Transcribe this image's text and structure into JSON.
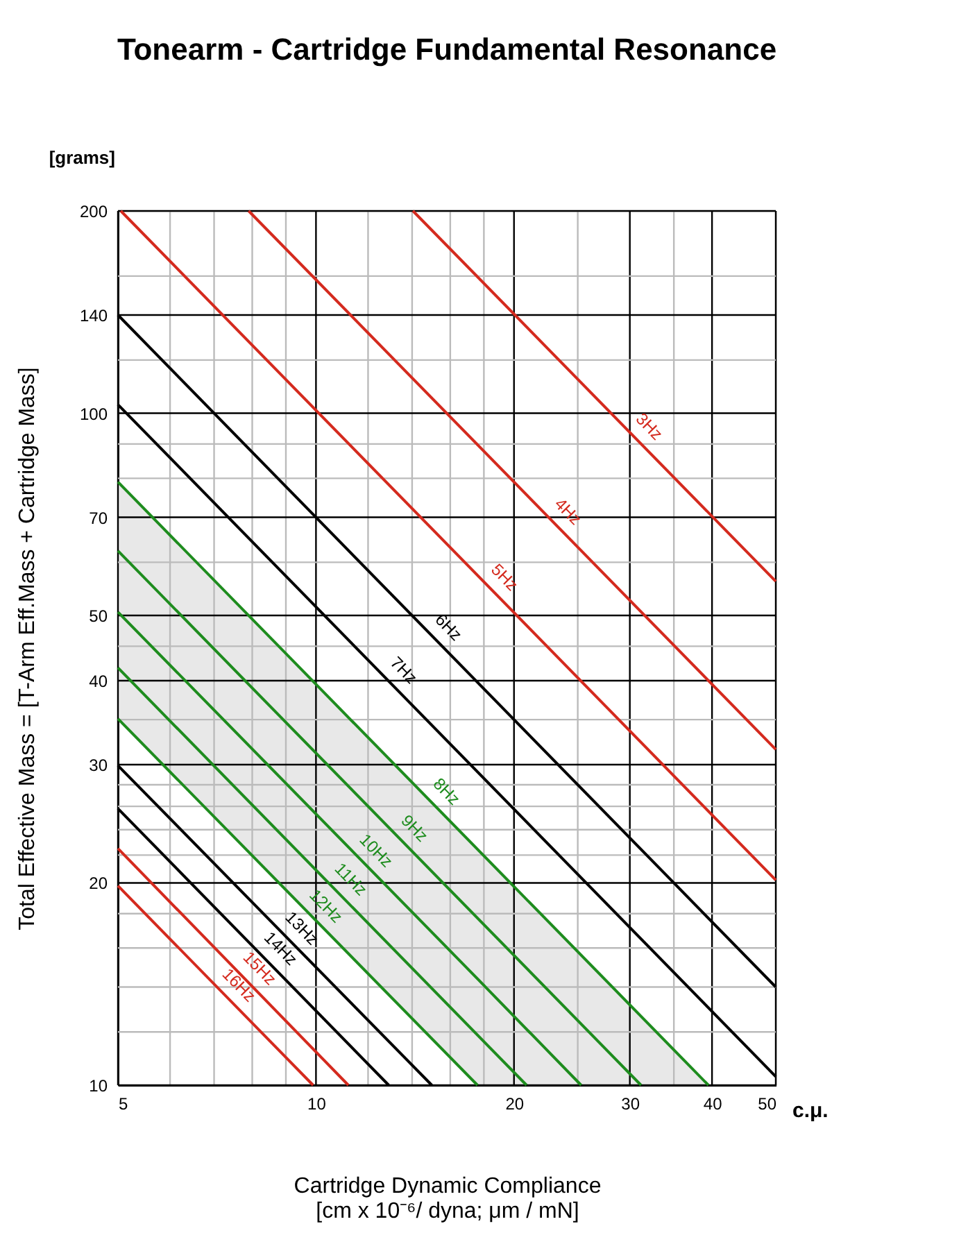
{
  "chart_data": {
    "type": "line",
    "title": "Tonearm - Cartridge Fundamental Resonance",
    "xlabel": "Cartridge Dynamic Compliance\n[cm x 10⁻⁶/ dyna; μm / mN]",
    "ylabel": "Total Effective Mass = [T-Arm Eff.Mass + Cartridge Mass]",
    "log": "xy",
    "grid": true,
    "line_style": "solid",
    "marker": "none",
    "xlim": [
      5,
      50
    ],
    "ylim": [
      10,
      200
    ],
    "xticks": [
      5,
      {
        "value": 6,
        "label": null
      },
      {
        "value": 7,
        "label": null
      },
      {
        "value": 8,
        "label": null
      },
      {
        "value": 9,
        "label": null
      },
      10,
      {
        "value": 12,
        "label": null
      },
      {
        "value": 14,
        "label": null
      },
      {
        "value": 16,
        "label": null
      },
      {
        "value": 18,
        "label": null
      },
      20,
      {
        "value": 25,
        "label": null
      },
      30,
      {
        "value": 35,
        "label": null
      },
      40,
      50
    ],
    "yticks": [
      10,
      {
        "value": 12,
        "label": null
      },
      {
        "value": 14,
        "label": null
      },
      {
        "value": 16,
        "label": null
      },
      {
        "value": 18,
        "label": null
      },
      20,
      {
        "value": 22,
        "label": null
      },
      {
        "value": 24,
        "label": null
      },
      {
        "value": 26,
        "label": null
      },
      {
        "value": 28,
        "label": null
      },
      30,
      {
        "value": 35,
        "label": null
      },
      40,
      {
        "value": 45,
        "label": null
      },
      50,
      {
        "value": 60,
        "label": null
      },
      70,
      {
        "value": 80,
        "label": null
      },
      {
        "value": 90,
        "label": null
      },
      100,
      {
        "value": 120,
        "label": null
      },
      140,
      {
        "value": 160,
        "label": null
      },
      200
    ],
    "series": [
      {
        "color": "#d42a1e",
        "x": [
          14.04,
          50
        ],
        "values": [
          200,
          56.2
        ]
      },
      {
        "color": "#d42a1e",
        "x": [
          7.9,
          50
        ],
        "values": [
          200,
          31.6
        ]
      },
      {
        "color": "#d42a1e",
        "x": [
          5.05,
          50
        ],
        "values": [
          200,
          20.2
        ]
      },
      {
        "color": "#000000",
        "x": [
          5,
          50
        ],
        "values": [
          140,
          14.0
        ]
      },
      {
        "color": "#000000",
        "x": [
          5,
          50
        ],
        "values": [
          103,
          10.3
        ]
      },
      {
        "color": "#1e8c1e",
        "x": [
          5,
          39.5
        ],
        "values": [
          79,
          10
        ]
      },
      {
        "color": "#1e8c1e",
        "x": [
          5,
          31.2
        ],
        "values": [
          62.4,
          10
        ]
      },
      {
        "color": "#1e8c1e",
        "x": [
          5,
          17.6,
          25.3,
          39.5
        ],
        "values": [
          50.6,
          14.4,
          10,
          null
        ],
        "lower": [
          35.1,
          10,
          10,
          10
        ],
        "upper": [
          79,
          22.4,
          15.6,
          10
        ]
      },
      {
        "color": "#1e8c1e",
        "x": [
          5,
          20.9
        ],
        "values": [
          41.8,
          10
        ]
      },
      {
        "color": "#1e8c1e",
        "x": [
          5,
          17.6
        ],
        "values": [
          35.1,
          10
        ]
      },
      {
        "color": "#000000",
        "x": [
          5,
          15
        ],
        "values": [
          29.9,
          10
        ]
      },
      {
        "color": "#000000",
        "x": [
          5,
          12.9
        ],
        "values": [
          25.8,
          10
        ]
      },
      {
        "color": "#d42a1e",
        "x": [
          5,
          11.2
        ],
        "values": [
          22.5,
          10
        ]
      },
      {
        "color": "#d42a1e",
        "x": [
          5,
          9.9
        ],
        "values": [
          19.8,
          10
        ]
      }
    ],
    "annotations": [
      {
        "text": "3Hz",
        "x": 30.7,
        "y": 91.5
      },
      {
        "text": "4Hz",
        "x": 23.1,
        "y": 68.4
      },
      {
        "text": "5Hz",
        "x": 18.5,
        "y": 54.6
      },
      {
        "text": "6Hz",
        "x": 15.2,
        "y": 46
      },
      {
        "text": "7Hz",
        "x": 13,
        "y": 39.7
      },
      {
        "text": "8Hz",
        "x": 15.1,
        "y": 26.2
      },
      {
        "text": "9Hz",
        "x": 13.5,
        "y": 23.1
      },
      {
        "text": "10Hz",
        "x": 11.8,
        "y": 21.4
      },
      {
        "text": "11Hz",
        "x": 10.8,
        "y": 19.4
      },
      {
        "text": "12Hz",
        "x": 9.9,
        "y": 17.7
      },
      {
        "text": "13Hz",
        "x": 9.1,
        "y": 16.4
      },
      {
        "text": "14Hz",
        "x": 8.45,
        "y": 15.3
      },
      {
        "text": "15Hz",
        "x": 7.85,
        "y": 14.3
      },
      {
        "text": "16Hz",
        "x": 7.3,
        "y": 13.5
      },
      "[grams]",
      "c.μ."
    ]
  }
}
